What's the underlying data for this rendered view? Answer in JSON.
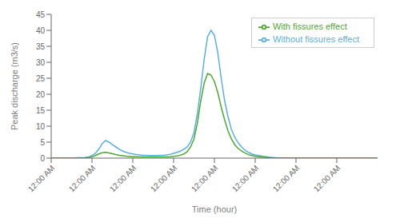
{
  "chart_data": {
    "type": "line",
    "xlabel": "Time (hour)",
    "ylabel": "Peak discharge (m3/s)",
    "x": [
      0,
      0.5,
      1,
      1.5,
      2,
      2.5,
      3,
      3.5,
      4,
      4.5,
      5,
      5.5,
      6,
      6.5,
      7,
      7.5,
      8,
      8.5,
      9,
      9.5,
      10,
      10.5,
      11,
      11.5,
      12,
      12.5,
      13,
      13.5,
      14,
      14.5,
      15,
      15.5,
      16,
      16.5,
      17,
      17.5,
      18,
      18.5,
      19,
      19.5,
      20,
      20.5,
      21,
      21.5,
      22,
      22.5,
      23,
      23.5,
      24,
      24.5,
      25,
      25.5,
      26,
      26.5,
      27,
      27.5,
      28,
      28.5,
      29,
      29.5,
      30,
      31,
      32,
      33,
      34,
      35,
      36,
      38,
      40,
      42,
      44,
      46,
      48
    ],
    "series": [
      {
        "name": "Without fissures effect",
        "color": "#5aafe0",
        "values": [
          0,
          0,
          0,
          0,
          0,
          0,
          0,
          0.05,
          0.1,
          0.15,
          0.2,
          0.4,
          0.8,
          1.5,
          2.8,
          4.5,
          5.5,
          5.0,
          4.2,
          3.5,
          2.8,
          2.2,
          1.8,
          1.5,
          1.3,
          1.1,
          1.0,
          0.9,
          0.85,
          0.82,
          0.8,
          0.82,
          0.85,
          0.9,
          1.0,
          1.2,
          1.5,
          1.8,
          2.2,
          2.8,
          3.5,
          5.0,
          8.0,
          14.0,
          22.0,
          31.0,
          38.0,
          40.0,
          38.5,
          33.0,
          25.0,
          18.0,
          13.0,
          9.0,
          6.5,
          4.8,
          3.5,
          2.5,
          1.8,
          1.3,
          1.0,
          0.6,
          0.3,
          0.15,
          0.08,
          0.04,
          0.02,
          0.01,
          0.005,
          0.002,
          0.001,
          0.0,
          0.0
        ]
      },
      {
        "name": "With fissures effect",
        "color": "#4da830",
        "values": [
          0,
          0,
          0,
          0,
          0,
          0,
          0,
          0.02,
          0.05,
          0.08,
          0.12,
          0.2,
          0.4,
          0.8,
          1.3,
          1.7,
          1.8,
          1.6,
          1.35,
          1.1,
          0.9,
          0.75,
          0.6,
          0.52,
          0.46,
          0.42,
          0.4,
          0.38,
          0.37,
          0.36,
          0.35,
          0.36,
          0.37,
          0.38,
          0.4,
          0.45,
          0.55,
          0.7,
          0.9,
          1.3,
          2.0,
          3.5,
          6.0,
          11.0,
          18.0,
          23.5,
          26.5,
          26.0,
          24.0,
          20.5,
          16.0,
          12.0,
          8.5,
          6.0,
          4.2,
          3.0,
          2.2,
          1.6,
          1.1,
          0.8,
          0.55,
          0.3,
          0.15,
          0.08,
          0.04,
          0.02,
          0.01,
          0.005,
          0.002,
          0.001,
          0.0,
          0.0,
          0.0
        ]
      }
    ],
    "xlim": [
      0,
      48
    ],
    "xticks": [
      {
        "value": 0,
        "label": "12:00 AM"
      },
      {
        "value": 6,
        "label": "12:00 AM"
      },
      {
        "value": 12,
        "label": "12:00 AM"
      },
      {
        "value": 18,
        "label": "12:00 AM"
      },
      {
        "value": 24,
        "label": "12:00 AM"
      },
      {
        "value": 30,
        "label": "12:00 AM"
      },
      {
        "value": 36,
        "label": "12:00 AM"
      },
      {
        "value": 42,
        "label": "12:00 AM"
      }
    ],
    "ylim": [
      0,
      45
    ],
    "yticks": [
      0,
      5,
      10,
      15,
      20,
      25,
      30,
      35,
      40,
      45
    ],
    "legend": "upper right",
    "grid": false
  }
}
